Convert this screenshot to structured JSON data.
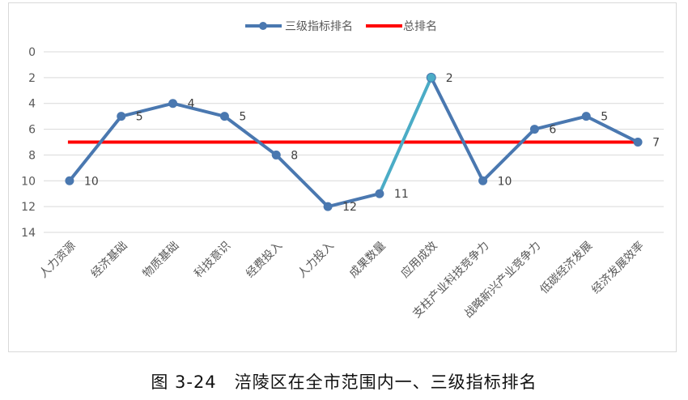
{
  "caption": "图 3-24　涪陵区在全市范围内一、三级指标排名",
  "colors": {
    "series_line": "#4a78b0",
    "series_highlight": "#4bacc6",
    "total_line": "#ff0000",
    "grid": "#d9d9d9",
    "axis_text": "#595959",
    "label_text": "#404040"
  },
  "chart_data": {
    "type": "line",
    "title": "",
    "xlabel": "",
    "ylabel": "",
    "y_inverted": true,
    "ylim": [
      0,
      14
    ],
    "yticks": [
      0,
      2,
      4,
      6,
      8,
      10,
      12,
      14
    ],
    "grid": true,
    "legend_position": "top",
    "categories": [
      "人力资源",
      "经济基础",
      "物质基础",
      "科技意识",
      "经费投入",
      "人力投入",
      "成果数量",
      "应用成效",
      "支柱产业科技竞争力",
      "战略新兴产业竞争力",
      "低碳经济发展",
      "经济发展效率"
    ],
    "series": [
      {
        "name": "三级指标排名",
        "type": "line",
        "values": [
          10,
          5,
          4,
          5,
          8,
          12,
          11,
          2,
          10,
          6,
          5,
          7
        ],
        "data_labels": [
          "10",
          "5",
          "4",
          "5",
          "8",
          "12",
          "11",
          "2",
          "10",
          "6",
          "5",
          "7"
        ],
        "highlight_segments": [
          [
            6,
            7
          ]
        ]
      },
      {
        "name": "总排名",
        "type": "reference_line",
        "value": 7
      }
    ]
  }
}
